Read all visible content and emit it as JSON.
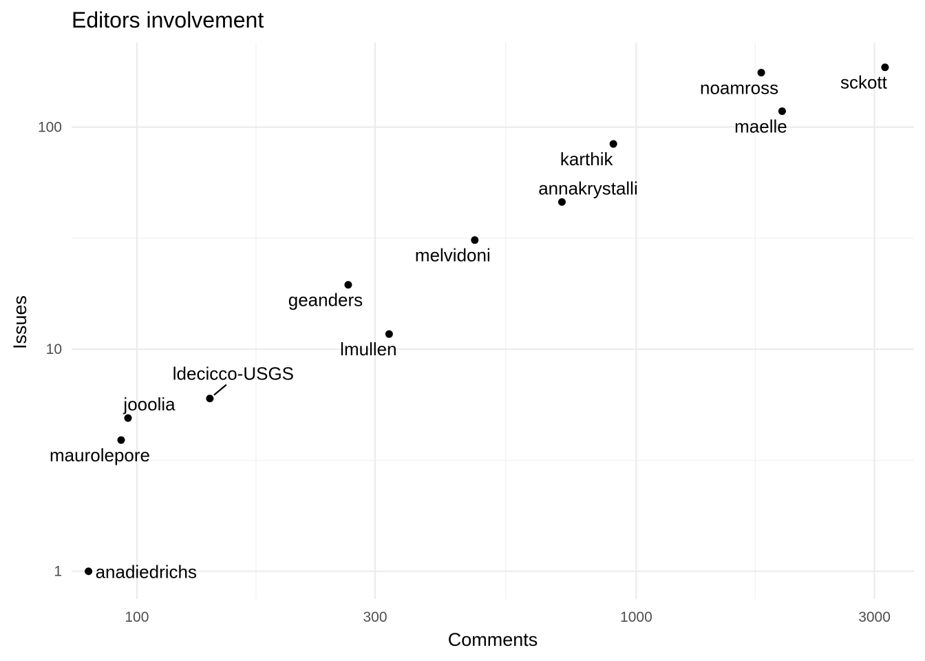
{
  "chart_data": {
    "type": "scatter",
    "title": "Editors involvement",
    "xlabel": "Comments",
    "ylabel": "Issues",
    "x_scale": "log10",
    "y_scale": "log10",
    "xlim": [
      74,
      3600
    ],
    "ylim": [
      0.75,
      240
    ],
    "x_ticks": [
      {
        "value": 100,
        "label": "100"
      },
      {
        "value": 300,
        "label": "300"
      },
      {
        "value": 1000,
        "label": "1000"
      },
      {
        "value": 3000,
        "label": "3000"
      }
    ],
    "y_ticks": [
      {
        "value": 1,
        "label": "1"
      },
      {
        "value": 10,
        "label": "10"
      },
      {
        "value": 100,
        "label": "100"
      }
    ],
    "grid": true,
    "points": [
      {
        "name": "anadiedrichs",
        "x": 80,
        "y": 1
      },
      {
        "name": "maurolepore",
        "x": 93,
        "y": 3.9
      },
      {
        "name": "jooolia",
        "x": 96,
        "y": 4.9
      },
      {
        "name": "ldecicco-USGS",
        "x": 140,
        "y": 6
      },
      {
        "name": "geanders",
        "x": 265,
        "y": 19.5
      },
      {
        "name": "lmullen",
        "x": 320,
        "y": 11.7
      },
      {
        "name": "melvidoni",
        "x": 475,
        "y": 31
      },
      {
        "name": "annakrystalli",
        "x": 710,
        "y": 46
      },
      {
        "name": "karthik",
        "x": 900,
        "y": 84
      },
      {
        "name": "noamross",
        "x": 1780,
        "y": 176
      },
      {
        "name": "maelle",
        "x": 1960,
        "y": 118
      },
      {
        "name": "sckott",
        "x": 3150,
        "y": 186
      }
    ]
  }
}
